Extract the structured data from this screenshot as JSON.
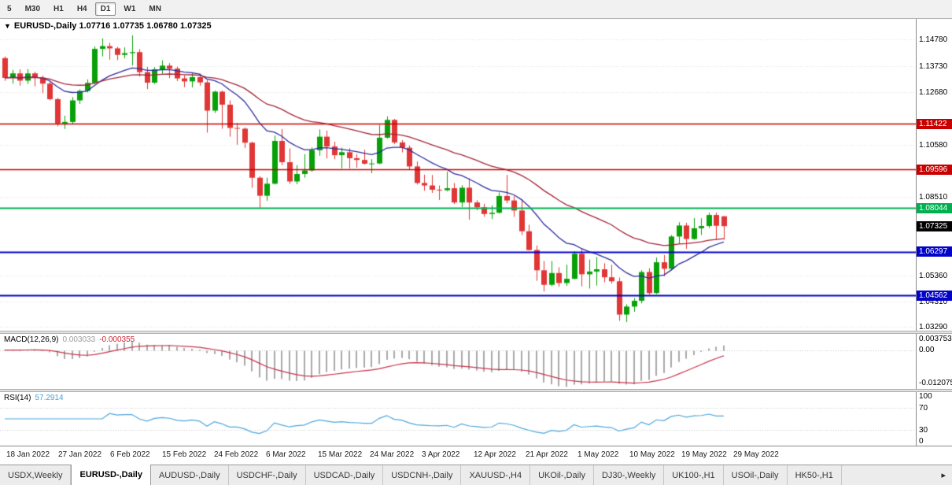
{
  "toolbar": {
    "timeframes": [
      "5",
      "M30",
      "H1",
      "H4",
      "D1",
      "W1",
      "MN"
    ],
    "active_timeframe": "D1"
  },
  "chart": {
    "dropdown_icon": "▼",
    "symbol": "EURUSD-,Daily",
    "ohlc_text": "1.07716 1.07735 1.06780 1.07325"
  },
  "chart_data": {
    "type": "candlestick",
    "title": "EURUSD-,Daily",
    "ohlc_current": {
      "open": 1.07716,
      "high": 1.07735,
      "low": 1.0678,
      "close": 1.07325
    },
    "ylim": [
      1.03146,
      1.15608
    ],
    "up_color": "#08a008",
    "down_color": "#e03636",
    "ma_fast_color": "#2c2c9e",
    "ma_slow_color": "#a32638",
    "y_tick_labels": [
      "1.14780",
      "1.13730",
      "1.12680",
      "1.10580",
      "1.08510",
      "1.05360",
      "1.04310",
      "1.03290"
    ],
    "x_tick_labels": [
      "18 Jan 2022",
      "27 Jan 2022",
      "6 Feb 2022",
      "15 Feb 2022",
      "24 Feb 2022",
      "6 Mar 2022",
      "15 Mar 2022",
      "24 Mar 2022",
      "3 Apr 2022",
      "12 Apr 2022",
      "21 Apr 2022",
      "1 May 2022",
      "10 May 2022",
      "19 May 2022",
      "29 May 2022"
    ],
    "horizontal_lines": [
      {
        "price": 1.11422,
        "label": "1.11422",
        "color": "#c80000",
        "width": 1.5
      },
      {
        "price": 1.09596,
        "label": "1.09596",
        "color": "#c80000",
        "width": 1.5
      },
      {
        "price": 1.08044,
        "label": "1.08044",
        "color": "#00b050",
        "width": 2
      },
      {
        "price": 1.06297,
        "label": "1.06297",
        "color": "#0202c8",
        "width": 2
      },
      {
        "price": 1.04562,
        "label": "1.04562",
        "color": "#0202c8",
        "width": 2
      }
    ],
    "current_price": {
      "price": 1.07325,
      "label": "1.07325",
      "color": "#000000"
    },
    "candles": [
      [
        1.1404,
        1.1411,
        1.1313,
        1.1325
      ],
      [
        1.1325,
        1.1357,
        1.1302,
        1.1343
      ],
      [
        1.1343,
        1.1359,
        1.1294,
        1.1314
      ],
      [
        1.1314,
        1.136,
        1.1301,
        1.1343
      ],
      [
        1.1343,
        1.1349,
        1.1291,
        1.1326
      ],
      [
        1.1326,
        1.1334,
        1.1264,
        1.1302
      ],
      [
        1.1302,
        1.131,
        1.1235,
        1.124
      ],
      [
        1.124,
        1.1245,
        1.1131,
        1.1143
      ],
      [
        1.1143,
        1.1174,
        1.1121,
        1.1149
      ],
      [
        1.1149,
        1.1248,
        1.1141,
        1.1235
      ],
      [
        1.1235,
        1.1279,
        1.1221,
        1.1273
      ],
      [
        1.1273,
        1.1319,
        1.1267,
        1.1305
      ],
      [
        1.1305,
        1.1451,
        1.13,
        1.1441
      ],
      [
        1.1441,
        1.1483,
        1.1411,
        1.1452
      ],
      [
        1.1452,
        1.1465,
        1.1398,
        1.1443
      ],
      [
        1.1443,
        1.1449,
        1.1396,
        1.1417
      ],
      [
        1.1417,
        1.1447,
        1.1403,
        1.1424
      ],
      [
        1.1424,
        1.1495,
        1.1375,
        1.1428
      ],
      [
        1.1428,
        1.144,
        1.133,
        1.1348
      ],
      [
        1.1348,
        1.1369,
        1.128,
        1.1306
      ],
      [
        1.1306,
        1.1368,
        1.1301,
        1.1359
      ],
      [
        1.1359,
        1.1395,
        1.1341,
        1.1374
      ],
      [
        1.1374,
        1.1384,
        1.1324,
        1.1362
      ],
      [
        1.1362,
        1.137,
        1.1312,
        1.1323
      ],
      [
        1.1323,
        1.1335,
        1.1288,
        1.1311
      ],
      [
        1.1311,
        1.1345,
        1.1287,
        1.1328
      ],
      [
        1.1328,
        1.1342,
        1.1294,
        1.1307
      ],
      [
        1.1307,
        1.1316,
        1.1106,
        1.1194
      ],
      [
        1.1194,
        1.1274,
        1.1185,
        1.127
      ],
      [
        1.127,
        1.1274,
        1.1122,
        1.1218
      ],
      [
        1.1218,
        1.1235,
        1.109,
        1.1125
      ],
      [
        1.1125,
        1.1145,
        1.1058,
        1.1122
      ],
      [
        1.1122,
        1.1127,
        1.1045,
        1.1066
      ],
      [
        1.1066,
        1.107,
        1.0886,
        1.0926
      ],
      [
        1.0926,
        1.0932,
        1.0806,
        1.0854
      ],
      [
        1.0854,
        1.0926,
        1.0834,
        1.0902
      ],
      [
        1.0902,
        1.1095,
        1.0899,
        1.1073
      ],
      [
        1.1073,
        1.1121,
        1.0976,
        1.0988
      ],
      [
        1.0988,
        1.1043,
        1.0901,
        1.0911
      ],
      [
        1.0911,
        1.0976,
        1.09,
        1.0941
      ],
      [
        1.0941,
        1.102,
        1.0926,
        1.0955
      ],
      [
        1.0955,
        1.1047,
        1.095,
        1.1036
      ],
      [
        1.1036,
        1.1119,
        1.1014,
        1.109
      ],
      [
        1.109,
        1.1114,
        1.1003,
        1.1051
      ],
      [
        1.1051,
        1.107,
        1.1,
        1.1016
      ],
      [
        1.1016,
        1.1046,
        1.0963,
        1.1028
      ],
      [
        1.1028,
        1.1044,
        1.0963,
        1.1004
      ],
      [
        1.1004,
        1.1021,
        1.0966,
        1.0997
      ],
      [
        1.0997,
        1.1038,
        1.0979,
        1.0982
      ],
      [
        1.0982,
        1.1,
        1.0944,
        1.0983
      ],
      [
        1.0983,
        1.1137,
        1.098,
        1.1086
      ],
      [
        1.1086,
        1.1171,
        1.1083,
        1.1157
      ],
      [
        1.1157,
        1.1161,
        1.106,
        1.1067
      ],
      [
        1.1067,
        1.1076,
        1.1027,
        1.1046
      ],
      [
        1.1046,
        1.1055,
        1.096,
        1.0971
      ],
      [
        1.0971,
        1.0991,
        1.0899,
        1.0905
      ],
      [
        1.0905,
        1.0938,
        1.0874,
        1.0895
      ],
      [
        1.0895,
        1.0937,
        1.0865,
        1.0878
      ],
      [
        1.0878,
        1.0895,
        1.0837,
        1.0876
      ],
      [
        1.0876,
        1.095,
        1.0872,
        1.0884
      ],
      [
        1.0884,
        1.0905,
        1.0821,
        1.0827
      ],
      [
        1.0827,
        1.0896,
        1.0809,
        1.0886
      ],
      [
        1.0886,
        1.0924,
        1.0758,
        1.0827
      ],
      [
        1.0827,
        1.0836,
        1.0796,
        1.0808
      ],
      [
        1.0808,
        1.0822,
        1.077,
        1.0781
      ],
      [
        1.0781,
        1.0815,
        1.0761,
        1.0786
      ],
      [
        1.0786,
        1.0867,
        1.0783,
        1.0853
      ],
      [
        1.0853,
        1.0937,
        1.0824,
        1.0835
      ],
      [
        1.0835,
        1.0852,
        1.077,
        1.0795
      ],
      [
        1.0795,
        1.084,
        1.0697,
        1.0712
      ],
      [
        1.0712,
        1.0738,
        1.0635,
        1.0637
      ],
      [
        1.0637,
        1.0655,
        1.0514,
        1.0556
      ],
      [
        1.0556,
        1.0593,
        1.0471,
        1.0498
      ],
      [
        1.0498,
        1.0593,
        1.0492,
        1.0545
      ],
      [
        1.0545,
        1.0568,
        1.049,
        1.0505
      ],
      [
        1.0505,
        1.0578,
        1.0494,
        1.0522
      ],
      [
        1.0522,
        1.0632,
        1.052,
        1.0622
      ],
      [
        1.0622,
        1.0642,
        1.0492,
        1.054
      ],
      [
        1.054,
        1.0599,
        1.0483,
        1.0551
      ],
      [
        1.0551,
        1.0609,
        1.0495,
        1.056
      ],
      [
        1.056,
        1.0584,
        1.0508,
        1.0528
      ],
      [
        1.0528,
        1.0578,
        1.0503,
        1.0512
      ],
      [
        1.0512,
        1.0527,
        1.0354,
        1.0379
      ],
      [
        1.0379,
        1.042,
        1.0349,
        1.0411
      ],
      [
        1.0411,
        1.0445,
        1.039,
        1.0434
      ],
      [
        1.0434,
        1.0556,
        1.0424,
        1.0549
      ],
      [
        1.0549,
        1.0564,
        1.0459,
        1.0465
      ],
      [
        1.0465,
        1.0607,
        1.0461,
        1.0588
      ],
      [
        1.0588,
        1.0617,
        1.0532,
        1.0562
      ],
      [
        1.0562,
        1.0697,
        1.0556,
        1.0691
      ],
      [
        1.0691,
        1.0748,
        1.0661,
        1.0735
      ],
      [
        1.0735,
        1.0746,
        1.0642,
        1.0681
      ],
      [
        1.0681,
        1.0765,
        1.0678,
        1.0724
      ],
      [
        1.0724,
        1.0764,
        1.0697,
        1.0733
      ],
      [
        1.0733,
        1.0786,
        1.0725,
        1.0777
      ],
      [
        1.0777,
        1.0787,
        1.0678,
        1.0734
      ],
      [
        1.07716,
        1.07735,
        1.0678,
        1.07325
      ]
    ],
    "indicators": {
      "macd": {
        "label": "MACD(12,26,9)",
        "values": [
          "0.003033",
          "-0.000355"
        ],
        "axis_labels": [
          "0.003753",
          "0.00",
          "-0.012075"
        ],
        "ylim": [
          -0.0131,
          0.0055
        ],
        "hist_color": "#aaaaaa",
        "signal_color": "#c83349"
      },
      "rsi": {
        "label": "RSI(14)",
        "value": "57.2914",
        "axis_labels": [
          "100",
          "70",
          "30",
          "0"
        ],
        "levels": [
          70,
          30
        ],
        "line_color": "#4da6dc"
      }
    }
  },
  "tabbar": {
    "scroll_icon": "▸",
    "items": [
      {
        "label": "USDX,Weekly",
        "active": false
      },
      {
        "label": "EURUSD-,Daily",
        "active": true
      },
      {
        "label": "AUDUSD-,Daily",
        "active": false
      },
      {
        "label": "USDCHF-,Daily",
        "active": false
      },
      {
        "label": "USDCAD-,Daily",
        "active": false
      },
      {
        "label": "USDCNH-,Daily",
        "active": false
      },
      {
        "label": "XAUUSD-,H4",
        "active": false
      },
      {
        "label": "UKOil-,Daily",
        "active": false
      },
      {
        "label": "DJ30-,Weekly",
        "active": false
      },
      {
        "label": "UK100-,H1",
        "active": false
      },
      {
        "label": "USOil-,Daily",
        "active": false
      },
      {
        "label": "HK50-,H1",
        "active": false
      }
    ]
  }
}
